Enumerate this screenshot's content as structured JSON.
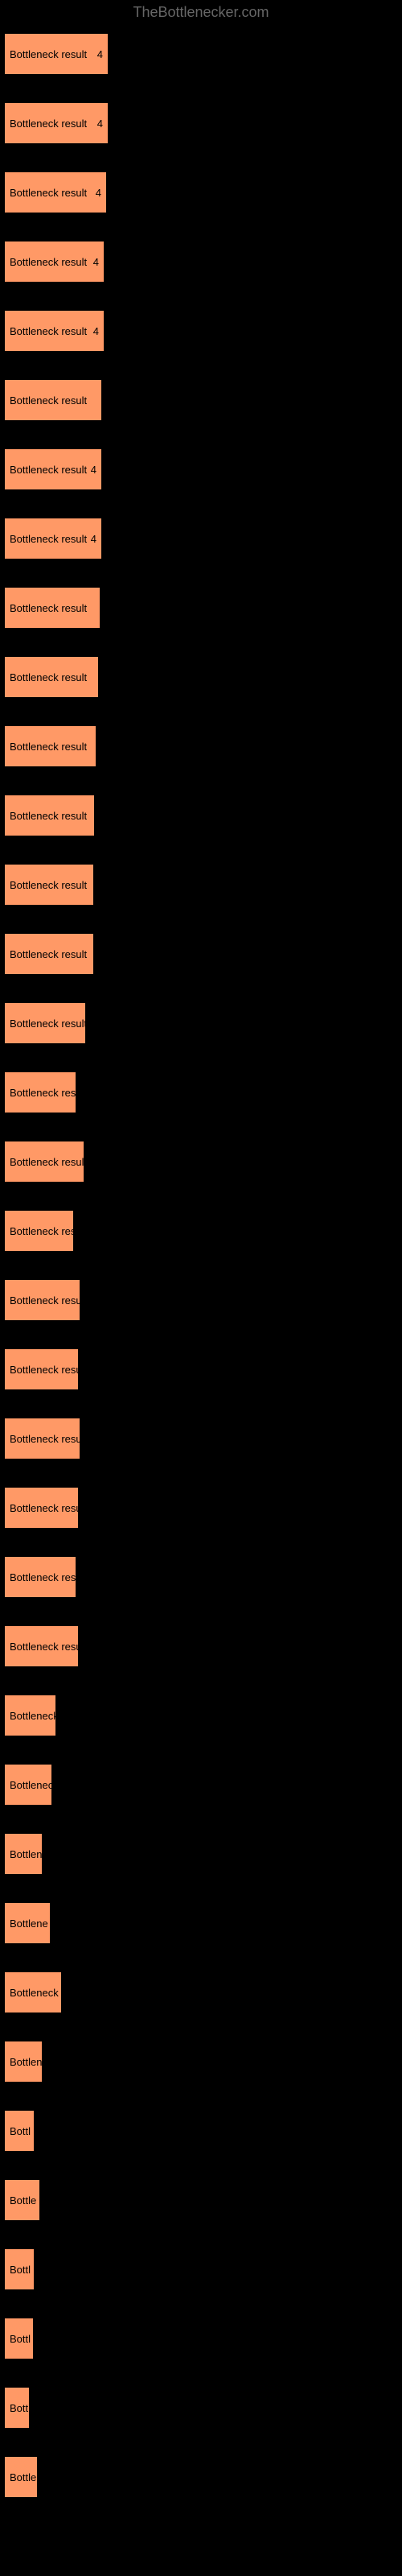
{
  "header": {
    "text": "TheBottlenecker.com"
  },
  "chart": {
    "type": "bar",
    "background_color": "#000000",
    "bar_color": "#ff9966",
    "text_color": "#000000",
    "header_color": "#666666",
    "max_width": 130,
    "bars": [
      {
        "label": "Bottleneck result",
        "width": 130,
        "value": "4"
      },
      {
        "label": "Bottleneck result",
        "width": 130,
        "value": "4"
      },
      {
        "label": "Bottleneck result",
        "width": 128,
        "value": "4"
      },
      {
        "label": "Bottleneck result",
        "width": 125,
        "value": "4"
      },
      {
        "label": "Bottleneck result",
        "width": 125,
        "value": "4"
      },
      {
        "label": "Bottleneck result",
        "width": 122,
        "value": ""
      },
      {
        "label": "Bottleneck result",
        "width": 122,
        "value": "4"
      },
      {
        "label": "Bottleneck result",
        "width": 122,
        "value": "4"
      },
      {
        "label": "Bottleneck result",
        "width": 120,
        "value": ""
      },
      {
        "label": "Bottleneck result",
        "width": 118,
        "value": ""
      },
      {
        "label": "Bottleneck result",
        "width": 115,
        "value": ""
      },
      {
        "label": "Bottleneck result",
        "width": 113,
        "value": ""
      },
      {
        "label": "Bottleneck result",
        "width": 112,
        "value": ""
      },
      {
        "label": "Bottleneck result",
        "width": 112,
        "value": ""
      },
      {
        "label": "Bottleneck result",
        "width": 102,
        "value": ""
      },
      {
        "label": "Bottleneck result",
        "width": 90,
        "value": ""
      },
      {
        "label": "Bottleneck result",
        "width": 100,
        "value": ""
      },
      {
        "label": "Bottleneck result",
        "width": 87,
        "value": ""
      },
      {
        "label": "Bottleneck resu",
        "width": 95,
        "value": ""
      },
      {
        "label": "Bottleneck result",
        "width": 93,
        "value": ""
      },
      {
        "label": "Bottleneck result",
        "width": 95,
        "value": ""
      },
      {
        "label": "Bottleneck result",
        "width": 93,
        "value": ""
      },
      {
        "label": "Bottleneck resu",
        "width": 90,
        "value": ""
      },
      {
        "label": "Bottleneck result",
        "width": 93,
        "value": ""
      },
      {
        "label": "Bottleneck",
        "width": 65,
        "value": ""
      },
      {
        "label": "Bottlenec",
        "width": 60,
        "value": ""
      },
      {
        "label": "Bottlen",
        "width": 48,
        "value": ""
      },
      {
        "label": "Bottlene",
        "width": 58,
        "value": ""
      },
      {
        "label": "Bottleneck r",
        "width": 72,
        "value": ""
      },
      {
        "label": "Bottlen",
        "width": 48,
        "value": ""
      },
      {
        "label": "Bottl",
        "width": 38,
        "value": ""
      },
      {
        "label": "Bottle",
        "width": 45,
        "value": ""
      },
      {
        "label": "Bottl",
        "width": 38,
        "value": ""
      },
      {
        "label": "Bottl",
        "width": 37,
        "value": ""
      },
      {
        "label": "Bott",
        "width": 32,
        "value": ""
      },
      {
        "label": "Bottle",
        "width": 42,
        "value": ""
      }
    ]
  }
}
